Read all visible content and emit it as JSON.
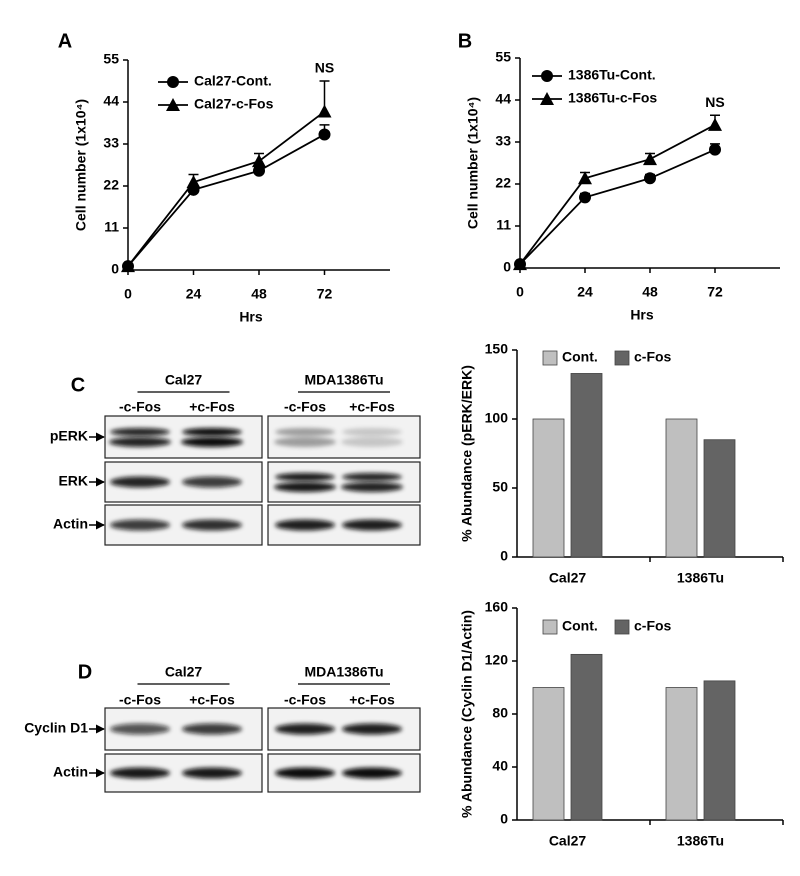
{
  "chart_data": [
    {
      "type": "line",
      "panel": "A",
      "xlabel": "Hrs",
      "ylabel": "Cell number (1x10⁴)",
      "x": [
        0,
        24,
        48,
        72
      ],
      "xlim": [
        0,
        96
      ],
      "xticks": [
        0,
        24,
        48,
        72
      ],
      "ylim": [
        0,
        55
      ],
      "yticks": [
        0,
        11,
        22,
        33,
        44,
        55
      ],
      "legend": "upper left",
      "annotation": "NS",
      "series": [
        {
          "name": "Cal27-Cont.",
          "color": "#000000",
          "marker": "circle",
          "values": [
            1,
            21,
            26,
            35.5
          ],
          "errors": [
            0.3,
            1,
            1,
            2.5
          ]
        },
        {
          "name": "Cal27-c-Fos",
          "color": "#000000",
          "marker": "triangle",
          "values": [
            1,
            23,
            28.5,
            41.5
          ],
          "errors": [
            0.3,
            2,
            2,
            8
          ]
        }
      ]
    },
    {
      "type": "line",
      "panel": "B",
      "xlabel": "Hrs",
      "ylabel": "Cell number (1x10⁴)",
      "x": [
        0,
        24,
        48,
        72
      ],
      "xlim": [
        0,
        96
      ],
      "xticks": [
        0,
        24,
        48,
        72
      ],
      "ylim": [
        0,
        55
      ],
      "yticks": [
        0,
        11,
        22,
        33,
        44,
        55
      ],
      "legend": "upper left",
      "annotation": "NS",
      "series": [
        {
          "name": "1386Tu-Cont.",
          "color": "#000000",
          "marker": "circle",
          "values": [
            1,
            18.5,
            23.5,
            31
          ],
          "errors": [
            0.3,
            1,
            1,
            1.5
          ]
        },
        {
          "name": "1386Tu-c-Fos",
          "color": "#000000",
          "marker": "triangle",
          "values": [
            1,
            23.5,
            28.5,
            37.5
          ],
          "errors": [
            0.3,
            1.5,
            1.5,
            2.5
          ]
        }
      ]
    },
    {
      "type": "bar",
      "ylabel": "% Abundance (pERK/ERK)",
      "categories": [
        "Cal27",
        "1386Tu"
      ],
      "ylim": [
        0,
        150
      ],
      "yticks": [
        0,
        50,
        100,
        150
      ],
      "legend": "upper left",
      "series": [
        {
          "name": "Cont.",
          "color": "#bfbfbf",
          "values": [
            100,
            100
          ]
        },
        {
          "name": "c-Fos",
          "color": "#646464",
          "values": [
            133,
            85
          ]
        }
      ]
    },
    {
      "type": "bar",
      "ylabel": "% Abundance (Cyclin D1/Actin)",
      "categories": [
        "Cal27",
        "1386Tu"
      ],
      "ylim": [
        0,
        160
      ],
      "yticks": [
        0,
        40,
        80,
        120,
        160
      ],
      "legend": "upper left",
      "series": [
        {
          "name": "Cont.",
          "color": "#bfbfbf",
          "values": [
            100,
            100
          ]
        },
        {
          "name": "c-Fos",
          "color": "#646464",
          "values": [
            125,
            105
          ]
        }
      ]
    }
  ],
  "blots": [
    {
      "panel": "C",
      "groups": [
        {
          "name": "Cal27",
          "lanes": [
            "-c-Fos",
            "+c-Fos"
          ]
        },
        {
          "name": "MDA1386Tu",
          "lanes": [
            "-c-Fos",
            "+c-Fos"
          ]
        }
      ],
      "rows": [
        "pERK",
        "ERK",
        "Actin"
      ]
    },
    {
      "panel": "D",
      "groups": [
        {
          "name": "Cal27",
          "lanes": [
            "-c-Fos",
            "+c-Fos"
          ]
        },
        {
          "name": "MDA1386Tu",
          "lanes": [
            "-c-Fos",
            "+c-Fos"
          ]
        }
      ],
      "rows": [
        "Cyclin D1",
        "Actin"
      ]
    }
  ]
}
